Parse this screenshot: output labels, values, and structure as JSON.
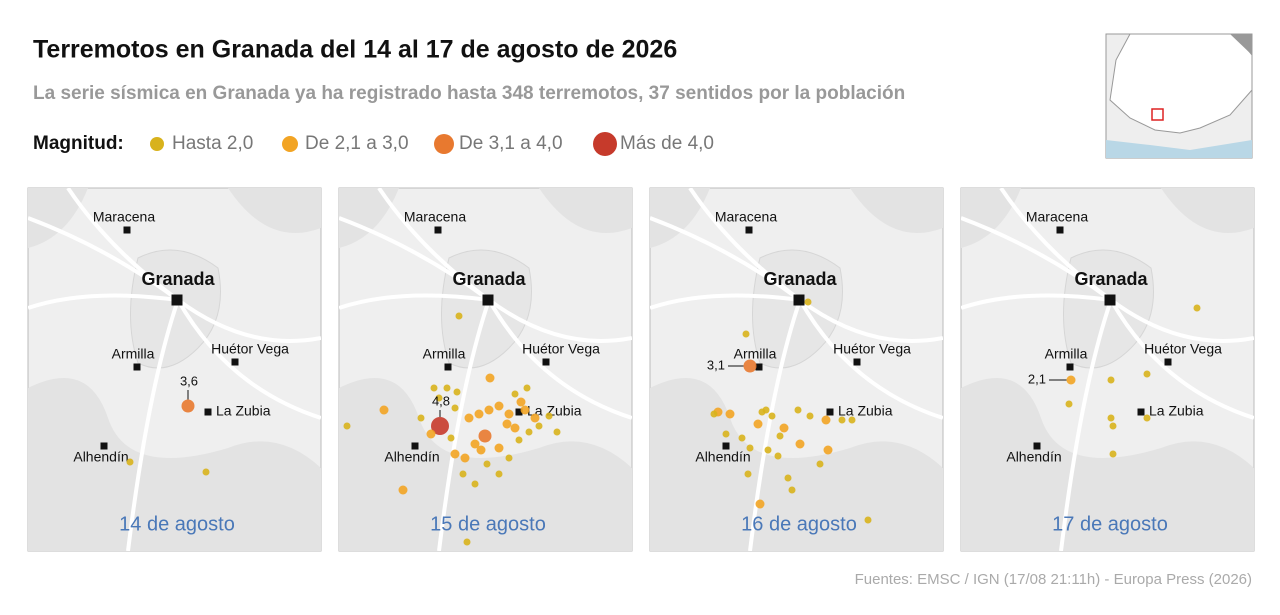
{
  "header": {
    "title": "Terremotos en Granada del 14 al 17 de agosto de 2026",
    "subtitle": "La serie sísmica en Granada ya ha registrado hasta 348 terremotos, 37 sentidos por la población"
  },
  "legend": {
    "title": "Magnitud:",
    "items": [
      "Hasta 2,0",
      "De 2,1 a 3,0",
      "De 3,1 a 4,0",
      "Más de 4,0"
    ]
  },
  "towns": [
    "Maracena",
    "Granada",
    "Armilla",
    "Huétor Vega",
    "La Zubia",
    "Alhendín"
  ],
  "panels": [
    {
      "date": "14 de agosto",
      "annotation": "3,6"
    },
    {
      "date": "15 de agosto",
      "annotation": "4,8"
    },
    {
      "date": "16 de agosto",
      "annotation": "3,1"
    },
    {
      "date": "17 de agosto",
      "annotation": "2,1"
    }
  ],
  "source": "Fuentes: EMSC / IGN (17/08 21:11h) - Europa Press (2026)"
}
